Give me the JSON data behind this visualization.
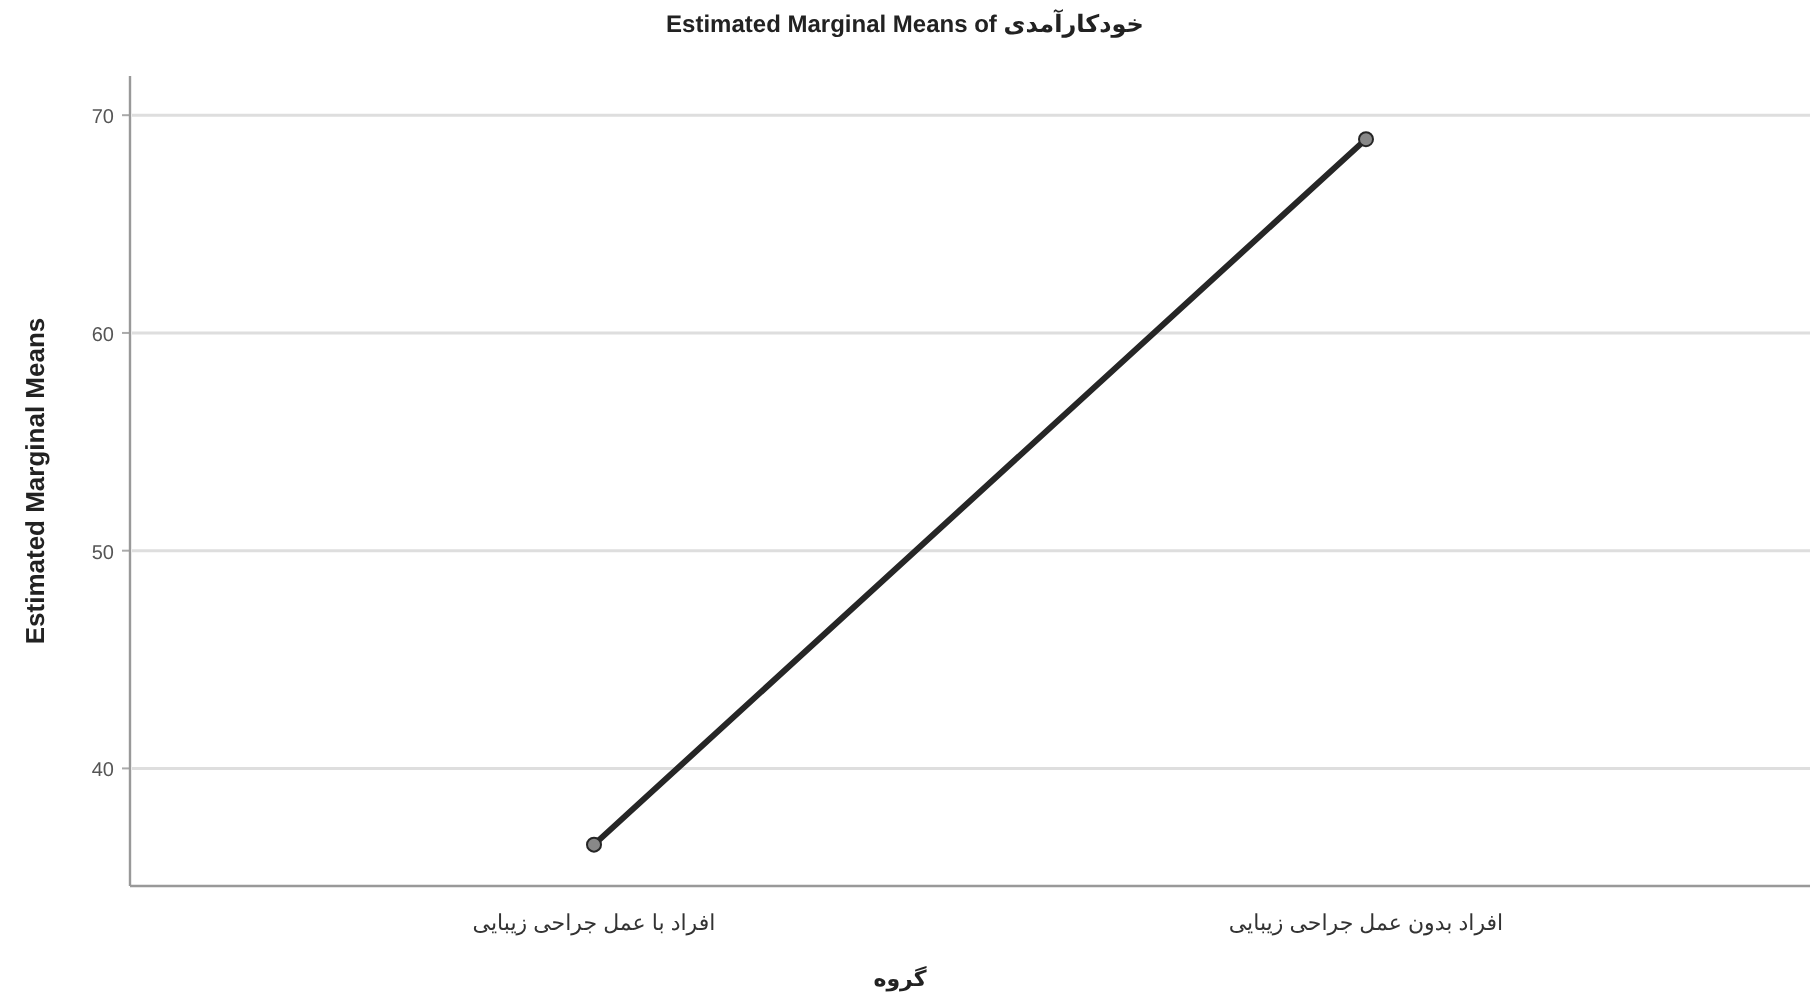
{
  "chart_data": {
    "type": "line",
    "title": "Estimated Marginal Means of خودکارآمدی",
    "xlabel": "گروه",
    "ylabel": "Estimated Marginal Means",
    "categories": [
      "افراد با عمل جراحی زیبایی",
      "افراد بدون عمل جراحی زیبایی"
    ],
    "series": [
      {
        "color": "#262626",
        "values": [
          36.5,
          68.9
        ]
      }
    ],
    "ylim": [
      34.6,
      71.8
    ],
    "yticks": [
      40,
      50,
      60,
      70
    ],
    "grid": "y",
    "marker": "circle",
    "line_style": "solid"
  }
}
